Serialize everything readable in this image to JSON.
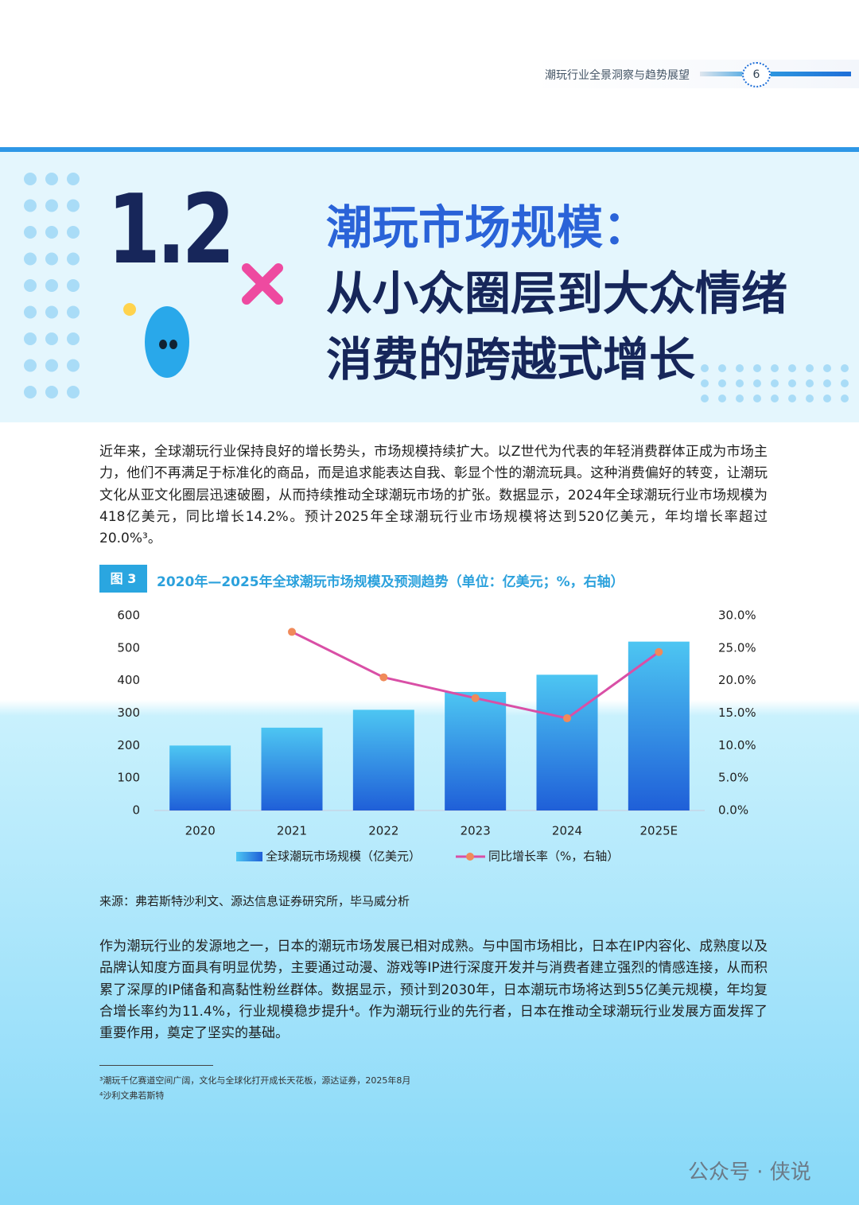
{
  "header": {
    "title": "潮玩行业全景洞察与趋势展望",
    "page": "6"
  },
  "section": {
    "number": "1.2",
    "title_lines": [
      "潮玩市场规模：",
      "从小众圈层到大众情绪",
      "消费的跨越式增长"
    ]
  },
  "intro": "近年来，全球潮玩行业保持良好的增长势头，市场规模持续扩大。以Z世代为代表的年轻消费群体正成为市场主力，他们不再满足于标准化的商品，而是追求能表达自我、彰显个性的潮流玩具。这种消费偏好的转变，让潮玩文化从亚文化圈层迅速破圈，从而持续推动全球潮玩市场的扩张。数据显示，2024年全球潮玩行业市场规模为418亿美元，同比增长14.2%。预计2025年全球潮玩行业市场规模将达到520亿美元，年均增长率超过20.0%³。",
  "figure": {
    "label": "图 3",
    "title": "2020年—2025年全球潮玩市场规模及预测趋势（单位：亿美元；%，右轴）",
    "chart_data": {
      "type": "bar",
      "categories": [
        "2020",
        "2021",
        "2022",
        "2023",
        "2024",
        "2025E"
      ],
      "series": [
        {
          "name": "全球潮玩市场规模（亿美元）",
          "color": "#1f5fd8",
          "values": [
            200,
            255,
            310,
            365,
            418,
            520
          ]
        },
        {
          "name": "同比增长率（%，右轴）",
          "type": "line",
          "axis": "y2",
          "color": "#d94fa6",
          "marker_color": "#f08a5a",
          "values": [
            null,
            27.5,
            20.5,
            17.3,
            14.2,
            24.4
          ]
        }
      ],
      "ylim": [
        0,
        600
      ],
      "yticks": [
        0,
        100,
        200,
        300,
        400,
        500,
        600
      ],
      "y2lim": [
        0,
        30
      ],
      "y2ticks": [
        {
          "value": 0,
          "label": "0.0%"
        },
        {
          "value": 5,
          "label": "5.0%"
        },
        {
          "value": 10,
          "label": "10.0%"
        },
        {
          "value": 15,
          "label": "15.0%"
        },
        {
          "value": 20,
          "label": "20.0%"
        },
        {
          "value": 25,
          "label": "25.0%"
        },
        {
          "value": 30,
          "label": "30.0%"
        }
      ],
      "legend": "bottom"
    }
  },
  "source": "来源：弗若斯特沙利文、源达信息证券研究所，毕马威分析",
  "body": "作为潮玩行业的发源地之一，日本的潮玩市场发展已相对成熟。与中国市场相比，日本在IP内容化、成熟度以及品牌认知度方面具有明显优势，主要通过动漫、游戏等IP进行深度开发并与消费者建立强烈的情感连接，从而积累了深厚的IP储备和高黏性粉丝群体。数据显示，预计到2030年，日本潮玩市场将达到55亿美元规模，年均复合增长率约为11.4%，行业规模稳步提升⁴。作为潮玩行业的先行者，日本在推动全球潮玩行业发展方面发挥了重要作用，奠定了坚实的基础。",
  "footnotes": [
    "³潮玩千亿赛道空间广阔，文化与全球化打开成长天花板，源达证券，2025年8月",
    "⁴沙利文弗若斯特"
  ],
  "watermark": "公众号 · 侠说"
}
